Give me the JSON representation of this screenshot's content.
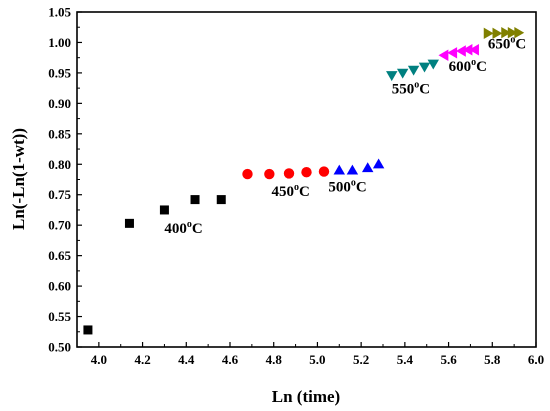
{
  "chart_data": {
    "type": "scatter",
    "xlabel": "Ln (time)",
    "ylabel": "Ln(-Ln(1-wt))",
    "xlim": [
      3.9,
      6.0
    ],
    "ylim": [
      0.5,
      1.05
    ],
    "xticks": [
      "4.0",
      "4.2",
      "4.4",
      "4.6",
      "4.8",
      "5.0",
      "5.2",
      "5.4",
      "5.6",
      "5.8",
      "6.0"
    ],
    "yticks": [
      "0.50",
      "0.55",
      "0.60",
      "0.65",
      "0.70",
      "0.75",
      "0.80",
      "0.85",
      "0.90",
      "0.95",
      "1.00",
      "1.05"
    ],
    "grid": false,
    "series": [
      {
        "label_base": "400",
        "label_sup": "o",
        "label_unit": "C",
        "marker": "square",
        "color": "#000000",
        "x": [
          3.95,
          4.14,
          4.3,
          4.44,
          4.56
        ],
        "y": [
          0.528,
          0.703,
          0.725,
          0.742,
          0.742
        ],
        "label_at": [
          4.3,
          0.687
        ]
      },
      {
        "label_base": "450",
        "label_sup": "o",
        "label_unit": "C",
        "marker": "circle",
        "color": "#ff0000",
        "x": [
          4.68,
          4.78,
          4.87,
          4.95,
          5.03
        ],
        "y": [
          0.784,
          0.784,
          0.785,
          0.787,
          0.788
        ],
        "label_at": [
          4.79,
          0.748
        ]
      },
      {
        "label_base": "500",
        "label_sup": "o",
        "label_unit": "C",
        "marker": "triangle-up",
        "color": "#0000ff",
        "x": [
          5.1,
          5.16,
          5.23,
          5.28
        ],
        "y": [
          0.79,
          0.79,
          0.794,
          0.8
        ],
        "label_at": [
          5.05,
          0.755
        ]
      },
      {
        "label_base": "550",
        "label_sup": "o",
        "label_unit": "C",
        "marker": "triangle-down",
        "color": "#008080",
        "x": [
          5.34,
          5.39,
          5.44,
          5.49,
          5.53
        ],
        "y": [
          0.946,
          0.95,
          0.955,
          0.96,
          0.965
        ],
        "label_at": [
          5.34,
          0.916
        ]
      },
      {
        "label_base": "600",
        "label_sup": "o",
        "label_unit": "C",
        "marker": "triangle-left",
        "color": "#ff00ff",
        "x": [
          5.58,
          5.62,
          5.66,
          5.69,
          5.72
        ],
        "y": [
          0.979,
          0.983,
          0.986,
          0.988,
          0.988
        ],
        "label_at": [
          5.6,
          0.953
        ]
      },
      {
        "label_base": "650",
        "label_sup": "o",
        "label_unit": "C",
        "marker": "triangle-right",
        "color": "#808000",
        "x": [
          5.78,
          5.82,
          5.86,
          5.89,
          5.92
        ],
        "y": [
          1.015,
          1.015,
          1.016,
          1.016,
          1.016
        ],
        "label_at": [
          5.78,
          0.99
        ]
      }
    ]
  }
}
